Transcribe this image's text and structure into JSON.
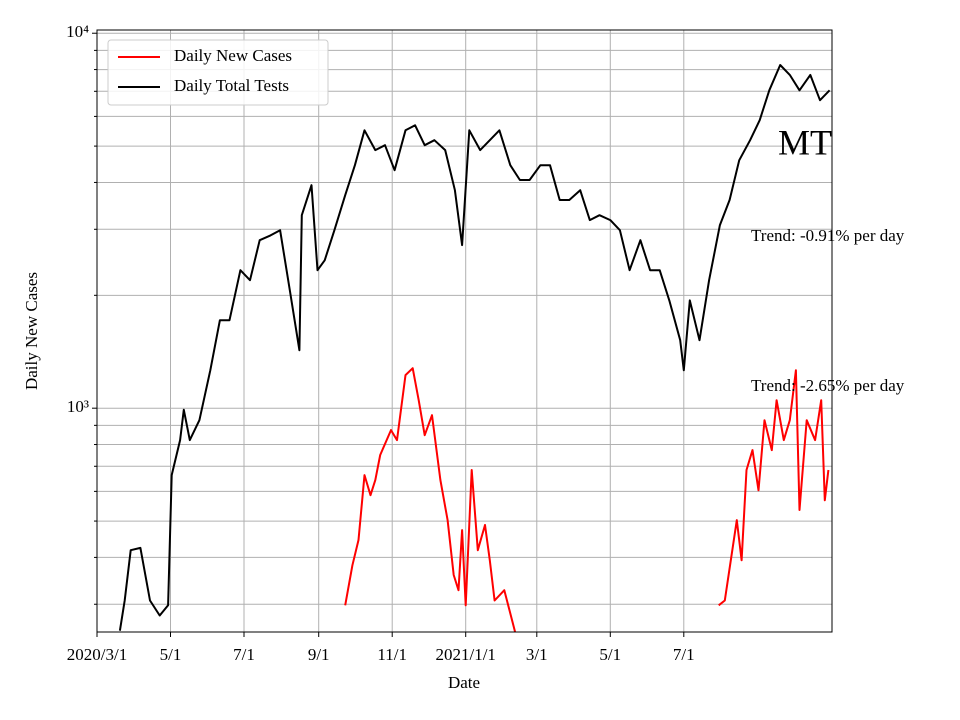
{
  "chart_data": {
    "type": "line",
    "y_label": "Daily New Cases",
    "x_label": "Date",
    "log_scale": true,
    "grid": true,
    "legend": "upper left",
    "xlim": [
      "2020-03-01",
      "2021-11-01"
    ],
    "xticks": [
      {
        "value": "2020-03-01",
        "label": "2020/3/1"
      },
      {
        "value": "2020-05-01",
        "label": "5/1"
      },
      {
        "value": "2020-07-01",
        "label": "7/1"
      },
      {
        "value": "2020-09-01",
        "label": "9/1"
      },
      {
        "value": "2020-11-01",
        "label": "11/1"
      },
      {
        "value": "2021-01-01",
        "label": "2021/1/1"
      },
      {
        "value": "2021-03-01",
        "label": "3/1"
      },
      {
        "value": "2021-05-01",
        "label": "5/1"
      },
      {
        "value": "2021-07-01",
        "label": "7/1"
      }
    ],
    "ylim": [
      253,
      10200
    ],
    "yticks": [
      {
        "value": 1000,
        "label": "10³"
      },
      {
        "value": 10000,
        "label": "10⁴"
      }
    ],
    "minor_yticks": [
      300,
      400,
      500,
      600,
      700,
      800,
      900,
      2000,
      3000,
      4000,
      5000,
      6000,
      7000,
      8000,
      9000
    ],
    "annotations": [
      "MT",
      "Trend: -0.91% per day",
      "Trend: -2.65% per day"
    ],
    "series": [
      {
        "name": "Daily New Cases",
        "color": "#ff0000",
        "x": [
          "2020-09-23",
          "2020-09-29",
          "2020-10-04",
          "2020-10-09",
          "2020-10-14",
          "2020-10-18",
          "2020-10-22",
          "2020-10-31",
          "2020-11-05",
          "2020-11-12",
          "2020-11-18",
          "2020-11-23",
          "2020-11-28",
          "2020-12-04",
          "2020-12-11",
          "2020-12-17",
          "2020-12-22",
          "2020-12-26",
          "2020-12-29",
          "2021-01-01",
          "2021-01-06",
          "2021-01-11",
          "2021-01-17",
          "2021-01-21",
          "2021-01-25",
          "2021-02-02",
          "2021-02-11",
          "2021-05-01",
          "2021-07-30",
          "2021-08-04",
          "2021-08-09",
          "2021-08-14",
          "2021-08-18",
          "2021-08-22",
          "2021-08-27",
          "2021-09-01",
          "2021-09-06",
          "2021-09-12",
          "2021-09-16",
          "2021-09-22",
          "2021-09-27",
          "2021-10-02",
          "2021-10-05",
          "2021-10-11",
          "2021-10-18",
          "2021-10-23",
          "2021-10-26",
          "2021-10-29"
        ],
        "values": [
          298,
          381,
          445,
          663,
          586,
          643,
          750,
          874,
          822,
          1225,
          1278,
          1050,
          847,
          958,
          643,
          503,
          359,
          327,
          473,
          298,
          684,
          418,
          488,
          393,
          307,
          327,
          253,
          null,
          298,
          307,
          393,
          503,
          393,
          684,
          773,
          604,
          929,
          773,
          1050,
          822,
          929,
          1262,
          535,
          929,
          822,
          1050,
          568,
          684
        ]
      },
      {
        "name": "Daily Total Tests",
        "color": "#000000",
        "x": [
          "2020-03-20",
          "2020-03-24",
          "2020-03-29",
          "2020-04-06",
          "2020-04-14",
          "2020-04-22",
          "2020-04-29",
          "2020-05-02",
          "2020-05-09",
          "2020-05-12",
          "2020-05-17",
          "2020-05-25",
          "2020-06-03",
          "2020-06-11",
          "2020-06-19",
          "2020-06-28",
          "2020-07-06",
          "2020-07-14",
          "2020-07-23",
          "2020-07-31",
          "2020-08-08",
          "2020-08-16",
          "2020-08-18",
          "2020-08-26",
          "2020-08-31",
          "2020-09-06",
          "2020-09-14",
          "2020-09-23",
          "2020-10-01",
          "2020-10-09",
          "2020-10-18",
          "2020-10-26",
          "2020-11-03",
          "2020-11-12",
          "2020-11-20",
          "2020-11-28",
          "2020-12-06",
          "2020-12-15",
          "2020-12-23",
          "2020-12-29",
          "2021-01-04",
          "2021-01-13",
          "2021-01-21",
          "2021-01-29",
          "2021-02-07",
          "2021-02-15",
          "2021-02-23",
          "2021-03-04",
          "2021-03-12",
          "2021-03-20",
          "2021-03-28",
          "2021-04-06",
          "2021-04-14",
          "2021-04-22",
          "2021-05-01",
          "2021-05-09",
          "2021-05-17",
          "2021-05-26",
          "2021-06-03",
          "2021-06-11",
          "2021-06-19",
          "2021-06-28",
          "2021-07-01",
          "2021-07-06",
          "2021-07-14",
          "2021-07-22",
          "2021-07-31",
          "2021-08-08",
          "2021-08-16",
          "2021-08-25",
          "2021-09-02",
          "2021-09-10",
          "2021-09-19",
          "2021-09-27",
          "2021-10-05",
          "2021-10-14",
          "2021-10-22",
          "2021-10-30"
        ],
        "values": [
          255,
          307,
          418,
          424,
          307,
          280,
          298,
          663,
          822,
          990,
          822,
          929,
          1262,
          1717,
          1717,
          2333,
          2195,
          2805,
          2890,
          2984,
          2065,
          1428,
          3271,
          3933,
          2333,
          2480,
          2984,
          3699,
          4448,
          5508,
          4878,
          5028,
          4312,
          5508,
          5681,
          5028,
          5183,
          4878,
          3813,
          2722,
          5508,
          4878,
          5183,
          5508,
          4448,
          4060,
          4060,
          4448,
          4448,
          3590,
          3590,
          3813,
          3175,
          3271,
          3175,
          2984,
          2333,
          2805,
          2333,
          2333,
          1939,
          1518,
          1262,
          1939,
          1518,
          2195,
          3078,
          3590,
          4582,
          5183,
          5861,
          7044,
          8226,
          7744,
          7044,
          7744,
          6630,
          7044
        ]
      }
    ]
  }
}
